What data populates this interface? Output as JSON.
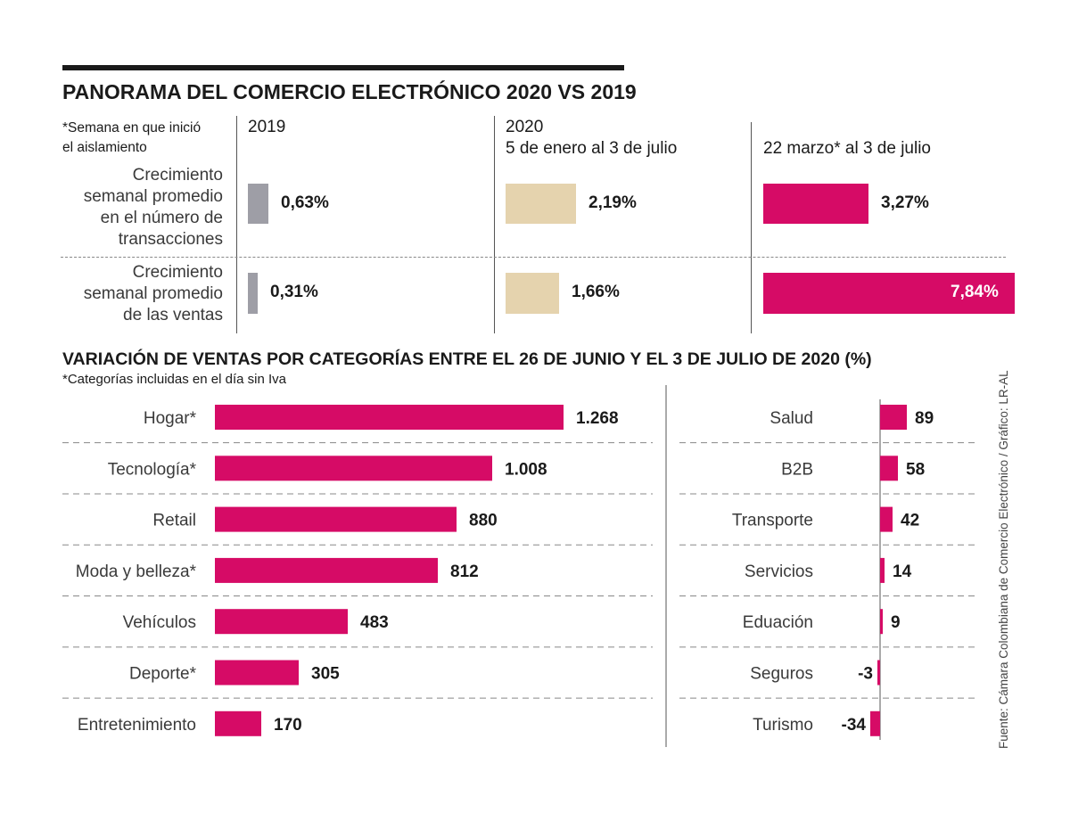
{
  "colors": {
    "magenta": "#d60b66",
    "beige": "#e5d3ae",
    "gray": "#9e9ea6",
    "text": "#1a1a1a"
  },
  "panorama": {
    "title": "PANORAMA DEL COMERCIO ELECTRÓNICO 2020 VS 2019",
    "note_line1": "*Semana en que inició",
    "note_line2": "el aislamiento",
    "col_2019": "2019",
    "col_2020_line1": "2020",
    "col_2020_line2": "5 de enero al 3 de julio",
    "col_lockdown": "22 marzo* al 3 de julio",
    "rows": [
      {
        "label_lines": [
          "Crecimiento",
          "semanal promedio",
          "en el número de",
          "transacciones"
        ],
        "v2019": 0.63,
        "v2020": 2.19,
        "vlock": 3.27,
        "t2019": "0,63%",
        "t2020": "2,19%",
        "tlock": "3,27%"
      },
      {
        "label_lines": [
          "Crecimiento",
          "semanal promedio",
          "de las ventas"
        ],
        "v2019": 0.31,
        "v2020": 1.66,
        "vlock": 7.84,
        "t2019": "0,31%",
        "t2020": "1,66%",
        "tlock": "7,84%"
      }
    ]
  },
  "chart_data": {
    "type": "bar",
    "title": "VARIACIÓN DE VENTAS POR CATEGORÍAS ENTRE EL 26 DE JUNIO Y EL 3 DE JULIO DE 2020 (%)",
    "subtitle": "*Categorías incluidas en el día sin Iva",
    "orientation": "horizontal",
    "left": {
      "categories": [
        "Hogar*",
        "Tecnología*",
        "Retail",
        "Moda y belleza*",
        "Vehículos",
        "Deporte*",
        "Entretenimiento"
      ],
      "values": [
        1268,
        1008,
        880,
        812,
        483,
        305,
        170
      ],
      "labels": [
        "1.268",
        "1.008",
        "880",
        "812",
        "483",
        "305",
        "170"
      ]
    },
    "right": {
      "categories": [
        "Salud",
        "B2B",
        "Transporte",
        "Servicios",
        "Eduación",
        "Seguros",
        "Turismo"
      ],
      "values": [
        89,
        58,
        42,
        14,
        9,
        -3,
        -34
      ],
      "labels": [
        "89",
        "58",
        "42",
        "14",
        "9",
        "-3",
        "-34"
      ]
    }
  },
  "source": "Fuente: Cámara Colombiana de Comercio Electrónico / Gráfico: LR-AL"
}
